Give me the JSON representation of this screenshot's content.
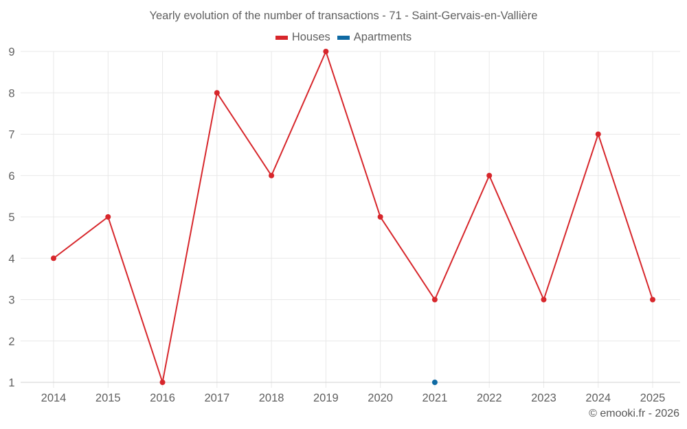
{
  "chart_data": {
    "type": "line",
    "title": "Yearly evolution of the number of transactions - 71 - Saint-Gervais-en-Vallière",
    "xlabel": "",
    "ylabel": "",
    "categories": [
      "2014",
      "2015",
      "2016",
      "2017",
      "2018",
      "2019",
      "2020",
      "2021",
      "2022",
      "2023",
      "2024",
      "2025"
    ],
    "series": [
      {
        "name": "Houses",
        "color": "#d7262b",
        "values": [
          4,
          5,
          1,
          8,
          6,
          9,
          5,
          3,
          6,
          3,
          7,
          3
        ]
      },
      {
        "name": "Apartments",
        "color": "#0f6aa3",
        "values": [
          null,
          null,
          null,
          null,
          null,
          null,
          null,
          1,
          null,
          null,
          null,
          null
        ]
      }
    ],
    "ylim": [
      1,
      9
    ],
    "yticks": [
      1,
      2,
      3,
      4,
      5,
      6,
      7,
      8,
      9
    ],
    "grid": true,
    "legend_position": "top"
  },
  "header": {
    "title": "Yearly evolution of the number of transactions - 71 - Saint-Gervais-en-Vallière"
  },
  "legend": {
    "items": [
      {
        "label": "Houses",
        "color": "#d7262b"
      },
      {
        "label": "Apartments",
        "color": "#0f6aa3"
      }
    ]
  },
  "footer": {
    "credit": "© emooki.fr - 2026"
  },
  "colors": {
    "grid": "#e8e8e8",
    "axis": "#d0d0d0",
    "text": "#5f5f5f"
  }
}
